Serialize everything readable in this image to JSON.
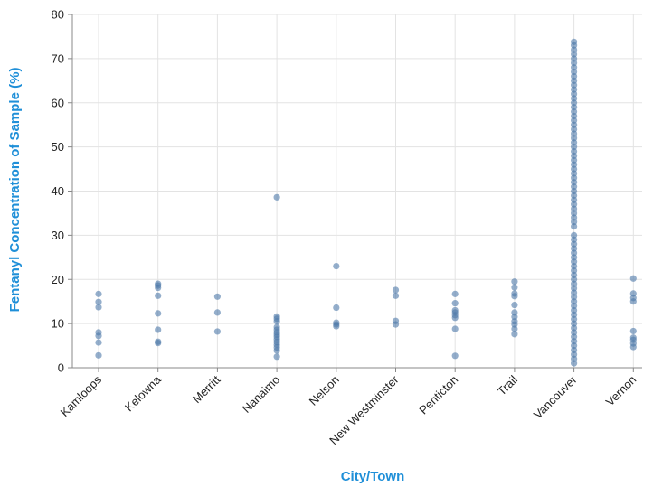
{
  "chart_data": {
    "type": "scatter",
    "xlabel": "City/Town",
    "ylabel": "Fentanyl Concentration of Sample (%)",
    "ylim": [
      0,
      80
    ],
    "yticks": [
      0,
      10,
      20,
      30,
      40,
      50,
      60,
      70,
      80
    ],
    "grid": true,
    "categories": [
      "Kamloops",
      "Kelowna",
      "Merritt",
      "Nanaimo",
      "Nelson",
      "New Westminster",
      "Penticton",
      "Trail",
      "Vancouver",
      "Vernon"
    ],
    "series": [
      {
        "points": {
          "Kamloops": [
            2.8,
            5.7,
            7.2,
            8.0,
            13.7,
            14.9,
            16.7
          ],
          "Kelowna": [
            5.6,
            5.9,
            8.6,
            12.3,
            16.3,
            18.1,
            18.6,
            19.0
          ],
          "Merritt": [
            8.2,
            12.5,
            16.1
          ],
          "Nanaimo": [
            2.5,
            3.9,
            4.6,
            5.2,
            5.8,
            6.4,
            7.0,
            7.5,
            8.0,
            8.6,
            9.2,
            10.5,
            11.1,
            11.6,
            38.6
          ],
          "Nelson": [
            9.4,
            9.8,
            10.2,
            13.6,
            23.0
          ],
          "New Westminster": [
            9.8,
            10.6,
            16.3,
            17.6
          ],
          "Penticton": [
            2.7,
            8.8,
            11.3,
            11.9,
            12.5,
            13.0,
            14.6,
            16.7
          ],
          "Trail": [
            7.6,
            8.8,
            9.8,
            10.5,
            11.5,
            12.5,
            14.2,
            16.2,
            16.8,
            18.2,
            19.5
          ],
          "Vancouver": [
            1.0,
            2.0,
            3.0,
            4.0,
            5.0,
            6.0,
            7.0,
            8.0,
            9.0,
            10.0,
            11.0,
            12.0,
            13.0,
            14.0,
            15.0,
            16.0,
            17.0,
            18.0,
            19.0,
            20.0,
            21.0,
            22.0,
            23.0,
            24.0,
            25.0,
            26.0,
            27.0,
            28.0,
            29.0,
            30.0,
            32.0,
            33.0,
            34.0,
            35.0,
            36.0,
            37.0,
            38.0,
            39.0,
            40.0,
            41.0,
            42.0,
            43.0,
            44.0,
            45.0,
            46.0,
            47.0,
            48.0,
            49.0,
            50.0,
            51.0,
            52.0,
            53.0,
            54.0,
            55.0,
            56.0,
            57.0,
            58.0,
            59.0,
            60.0,
            61.0,
            62.0,
            63.0,
            64.0,
            65.0,
            66.0,
            67.0,
            68.0,
            69.0,
            70.0,
            71.0,
            72.0,
            73.0,
            73.8
          ],
          "Vernon": [
            4.7,
            5.5,
            6.3,
            6.8,
            8.3,
            15.0,
            15.8,
            16.8,
            20.2
          ]
        }
      }
    ]
  },
  "colors": {
    "point": "#4c78a8",
    "axis_title": "#1f8fd8"
  }
}
